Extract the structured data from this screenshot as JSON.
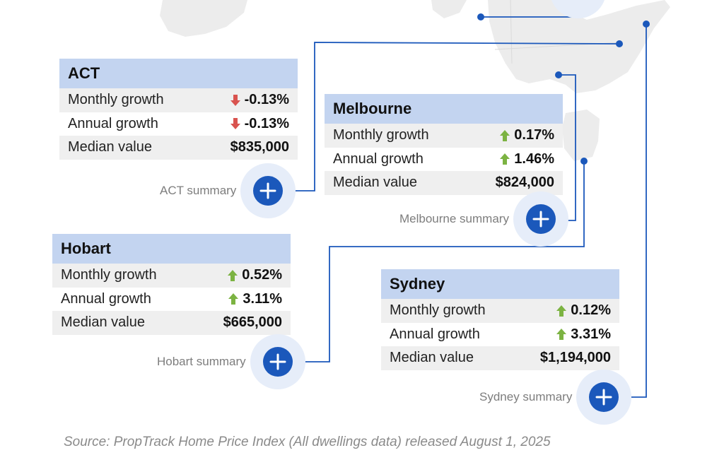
{
  "cities": [
    {
      "name": "ACT",
      "summary_label": "ACT summary",
      "rows": [
        {
          "label": "Monthly growth",
          "value": "-0.13%",
          "direction": "down"
        },
        {
          "label": "Annual growth",
          "value": "-0.13%",
          "direction": "down"
        },
        {
          "label": "Median value",
          "value": "$835,000",
          "direction": "none"
        }
      ]
    },
    {
      "name": "Melbourne",
      "summary_label": "Melbourne summary",
      "rows": [
        {
          "label": "Monthly growth",
          "value": "0.17%",
          "direction": "up"
        },
        {
          "label": "Annual growth",
          "value": "1.46%",
          "direction": "up"
        },
        {
          "label": "Median value",
          "value": "$824,000",
          "direction": "none"
        }
      ]
    },
    {
      "name": "Hobart",
      "summary_label": "Hobart summary",
      "rows": [
        {
          "label": "Monthly growth",
          "value": "0.52%",
          "direction": "up"
        },
        {
          "label": "Annual growth",
          "value": "3.11%",
          "direction": "up"
        },
        {
          "label": "Median value",
          "value": "$665,000",
          "direction": "none"
        }
      ]
    },
    {
      "name": "Sydney",
      "summary_label": "Sydney summary",
      "rows": [
        {
          "label": "Monthly growth",
          "value": "0.12%",
          "direction": "up"
        },
        {
          "label": "Annual growth",
          "value": "3.31%",
          "direction": "up"
        },
        {
          "label": "Median value",
          "value": "$1,194,000",
          "direction": "none"
        }
      ]
    }
  ],
  "source_note": "Source: PropTrack Home Price Index  (All dwellings data) released August 1, 2025",
  "colors": {
    "title_band": "#c3d4f0",
    "row_shade": "#efefef",
    "button": "#1b58bb",
    "connector": "#1b58bb",
    "up_arrow": "#7cb342",
    "down_arrow": "#d9534f",
    "map_land": "#ececec"
  },
  "icons": {
    "up": "arrow-up-icon",
    "down": "arrow-down-icon",
    "button": "plus-icon"
  }
}
